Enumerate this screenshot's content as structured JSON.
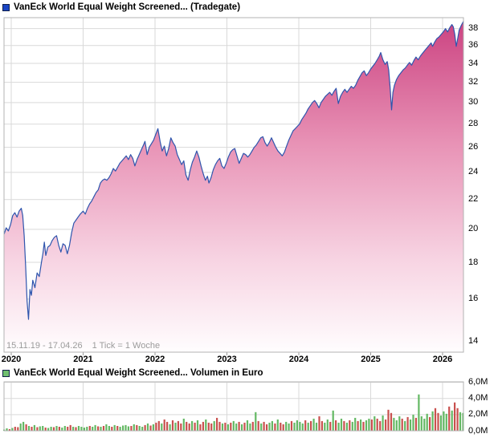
{
  "header": {
    "title": "VanEck World Equal Weight Screened... (Tradegate)"
  },
  "volume_header": {
    "title": "VanEck World Equal Weight Screened... Volumen in Euro"
  },
  "footer": {
    "date_range": "15.11.19 - 17.04.26",
    "tick_note": "1 Tick = 1 Woche"
  },
  "axes": {
    "price_ticks": [
      38,
      36,
      34,
      32,
      30,
      28,
      26,
      24,
      22,
      20,
      18,
      16,
      14
    ],
    "year_ticks": [
      "2020",
      "2021",
      "2022",
      "2023",
      "2024",
      "2025",
      "2026"
    ],
    "volume_tick_labels": [
      "6,0M",
      "4,0M",
      "2,0M",
      "0,0M"
    ],
    "volume_tick_values": [
      6,
      4,
      2,
      0
    ]
  },
  "colors": {
    "price_swatch": "#1a45c4",
    "volume_swatch": "#6fbf6f",
    "line": "#2f55ad",
    "area_top": "#cb4180",
    "area_mid": "#e893b6",
    "area_low": "#f7d3e2",
    "area_bottom": "#fffdfe",
    "grid": "#d9d9d9",
    "plot_border": "#b3b3b3",
    "bar_up": "#63b863",
    "bar_down": "#c9504e"
  },
  "chart_data": [
    {
      "type": "area",
      "title": "VanEck World Equal Weight Screened... (Tradegate)",
      "x_range_label": "15.11.19 - 17.04.26",
      "tick_note": "1 Tick = 1 Woche",
      "xlabel": "",
      "ylabel": "",
      "yscale": "log",
      "ylim": [
        13.5,
        39.4
      ],
      "x_ticks_years": [
        2020,
        2021,
        2022,
        2023,
        2024,
        2025,
        2026
      ],
      "y_ticks": [
        14,
        16,
        18,
        20,
        22,
        24,
        26,
        28,
        30,
        32,
        34,
        36,
        38
      ],
      "grid": true,
      "legend_position": "top-left",
      "points": [
        [
          2019.9,
          19.7
        ],
        [
          2019.93,
          20.1
        ],
        [
          2019.96,
          19.9
        ],
        [
          2019.99,
          20.3
        ],
        [
          2020.02,
          20.9
        ],
        [
          2020.05,
          21.1
        ],
        [
          2020.08,
          20.8
        ],
        [
          2020.11,
          21.2
        ],
        [
          2020.14,
          21.4
        ],
        [
          2020.16,
          20.9
        ],
        [
          2020.18,
          19.6
        ],
        [
          2020.2,
          17.8
        ],
        [
          2020.22,
          15.9
        ],
        [
          2020.24,
          15.0
        ],
        [
          2020.26,
          16.5
        ],
        [
          2020.28,
          16.2
        ],
        [
          2020.3,
          17.0
        ],
        [
          2020.33,
          16.6
        ],
        [
          2020.36,
          17.4
        ],
        [
          2020.39,
          17.2
        ],
        [
          2020.42,
          18.0
        ],
        [
          2020.44,
          18.5
        ],
        [
          2020.46,
          19.2
        ],
        [
          2020.48,
          18.4
        ],
        [
          2020.51,
          18.9
        ],
        [
          2020.54,
          19.0
        ],
        [
          2020.57,
          19.3
        ],
        [
          2020.6,
          19.5
        ],
        [
          2020.63,
          19.6
        ],
        [
          2020.66,
          19.0
        ],
        [
          2020.69,
          18.6
        ],
        [
          2020.72,
          19.1
        ],
        [
          2020.75,
          19.0
        ],
        [
          2020.78,
          18.5
        ],
        [
          2020.81,
          19.0
        ],
        [
          2020.84,
          19.8
        ],
        [
          2020.87,
          20.4
        ],
        [
          2020.9,
          20.6
        ],
        [
          2020.93,
          20.8
        ],
        [
          2020.96,
          21.0
        ],
        [
          2021.0,
          21.2
        ],
        [
          2021.03,
          21.0
        ],
        [
          2021.06,
          21.4
        ],
        [
          2021.09,
          21.7
        ],
        [
          2021.12,
          21.9
        ],
        [
          2021.15,
          22.2
        ],
        [
          2021.18,
          22.5
        ],
        [
          2021.21,
          22.7
        ],
        [
          2021.24,
          23.2
        ],
        [
          2021.27,
          23.4
        ],
        [
          2021.3,
          23.5
        ],
        [
          2021.33,
          23.4
        ],
        [
          2021.36,
          23.6
        ],
        [
          2021.39,
          23.9
        ],
        [
          2021.42,
          24.3
        ],
        [
          2021.45,
          24.1
        ],
        [
          2021.48,
          24.4
        ],
        [
          2021.51,
          24.7
        ],
        [
          2021.54,
          24.9
        ],
        [
          2021.57,
          25.1
        ],
        [
          2021.6,
          25.3
        ],
        [
          2021.63,
          25.0
        ],
        [
          2021.66,
          25.4
        ],
        [
          2021.69,
          25.1
        ],
        [
          2021.72,
          24.5
        ],
        [
          2021.75,
          25.0
        ],
        [
          2021.78,
          25.4
        ],
        [
          2021.81,
          25.8
        ],
        [
          2021.84,
          26.2
        ],
        [
          2021.86,
          26.5
        ],
        [
          2021.89,
          25.4
        ],
        [
          2021.92,
          26.0
        ],
        [
          2021.95,
          26.3
        ],
        [
          2021.98,
          26.6
        ],
        [
          2022.01,
          27.1
        ],
        [
          2022.04,
          27.6
        ],
        [
          2022.07,
          26.5
        ],
        [
          2022.1,
          25.7
        ],
        [
          2022.13,
          26.1
        ],
        [
          2022.16,
          25.3
        ],
        [
          2022.19,
          25.9
        ],
        [
          2022.22,
          26.8
        ],
        [
          2022.25,
          26.4
        ],
        [
          2022.28,
          26.1
        ],
        [
          2022.31,
          25.4
        ],
        [
          2022.34,
          25.0
        ],
        [
          2022.37,
          24.6
        ],
        [
          2022.4,
          24.9
        ],
        [
          2022.43,
          23.8
        ],
        [
          2022.46,
          23.4
        ],
        [
          2022.49,
          24.2
        ],
        [
          2022.52,
          24.8
        ],
        [
          2022.55,
          25.2
        ],
        [
          2022.58,
          25.7
        ],
        [
          2022.61,
          25.2
        ],
        [
          2022.64,
          24.5
        ],
        [
          2022.67,
          23.9
        ],
        [
          2022.7,
          23.4
        ],
        [
          2022.73,
          23.7
        ],
        [
          2022.75,
          23.2
        ],
        [
          2022.78,
          23.6
        ],
        [
          2022.81,
          24.2
        ],
        [
          2022.84,
          24.6
        ],
        [
          2022.87,
          24.9
        ],
        [
          2022.9,
          25.1
        ],
        [
          2022.93,
          24.5
        ],
        [
          2022.96,
          24.3
        ],
        [
          2022.99,
          24.7
        ],
        [
          2023.02,
          25.2
        ],
        [
          2023.05,
          25.6
        ],
        [
          2023.08,
          25.8
        ],
        [
          2023.11,
          25.9
        ],
        [
          2023.14,
          25.3
        ],
        [
          2023.17,
          24.7
        ],
        [
          2023.2,
          25.1
        ],
        [
          2023.23,
          25.5
        ],
        [
          2023.26,
          25.4
        ],
        [
          2023.29,
          25.2
        ],
        [
          2023.32,
          25.4
        ],
        [
          2023.35,
          25.7
        ],
        [
          2023.38,
          26.0
        ],
        [
          2023.41,
          26.2
        ],
        [
          2023.44,
          26.5
        ],
        [
          2023.47,
          26.8
        ],
        [
          2023.5,
          26.9
        ],
        [
          2023.53,
          26.4
        ],
        [
          2023.56,
          26.1
        ],
        [
          2023.59,
          26.4
        ],
        [
          2023.62,
          26.8
        ],
        [
          2023.65,
          26.4
        ],
        [
          2023.68,
          26.0
        ],
        [
          2023.71,
          25.7
        ],
        [
          2023.74,
          25.5
        ],
        [
          2023.77,
          25.3
        ],
        [
          2023.8,
          25.6
        ],
        [
          2023.83,
          26.1
        ],
        [
          2023.86,
          26.6
        ],
        [
          2023.89,
          27.0
        ],
        [
          2023.92,
          27.4
        ],
        [
          2023.95,
          27.6
        ],
        [
          2023.98,
          27.8
        ],
        [
          2024.01,
          28.0
        ],
        [
          2024.04,
          28.4
        ],
        [
          2024.07,
          28.7
        ],
        [
          2024.1,
          29.0
        ],
        [
          2024.13,
          29.4
        ],
        [
          2024.16,
          29.7
        ],
        [
          2024.19,
          30.0
        ],
        [
          2024.22,
          30.2
        ],
        [
          2024.25,
          29.9
        ],
        [
          2024.28,
          29.5
        ],
        [
          2024.31,
          30.0
        ],
        [
          2024.34,
          30.3
        ],
        [
          2024.37,
          30.6
        ],
        [
          2024.4,
          30.8
        ],
        [
          2024.43,
          31.0
        ],
        [
          2024.46,
          30.7
        ],
        [
          2024.49,
          31.1
        ],
        [
          2024.52,
          31.4
        ],
        [
          2024.55,
          29.9
        ],
        [
          2024.58,
          30.6
        ],
        [
          2024.61,
          31.0
        ],
        [
          2024.64,
          31.3
        ],
        [
          2024.67,
          31.0
        ],
        [
          2024.7,
          31.3
        ],
        [
          2024.73,
          31.6
        ],
        [
          2024.76,
          31.4
        ],
        [
          2024.79,
          31.7
        ],
        [
          2024.82,
          32.2
        ],
        [
          2024.85,
          32.6
        ],
        [
          2024.88,
          33.0
        ],
        [
          2024.91,
          33.2
        ],
        [
          2024.94,
          32.7
        ],
        [
          2024.97,
          33.0
        ],
        [
          2025.0,
          33.4
        ],
        [
          2025.03,
          33.7
        ],
        [
          2025.06,
          34.0
        ],
        [
          2025.09,
          34.4
        ],
        [
          2025.12,
          34.8
        ],
        [
          2025.14,
          35.2
        ],
        [
          2025.17,
          34.4
        ],
        [
          2025.2,
          33.9
        ],
        [
          2025.23,
          34.2
        ],
        [
          2025.25,
          33.3
        ],
        [
          2025.27,
          31.5
        ],
        [
          2025.29,
          29.3
        ],
        [
          2025.31,
          31.0
        ],
        [
          2025.33,
          31.7
        ],
        [
          2025.36,
          32.3
        ],
        [
          2025.39,
          32.7
        ],
        [
          2025.42,
          33.0
        ],
        [
          2025.45,
          33.3
        ],
        [
          2025.48,
          33.5
        ],
        [
          2025.51,
          33.8
        ],
        [
          2025.54,
          34.1
        ],
        [
          2025.57,
          33.8
        ],
        [
          2025.6,
          34.3
        ],
        [
          2025.63,
          34.7
        ],
        [
          2025.66,
          34.4
        ],
        [
          2025.69,
          34.8
        ],
        [
          2025.72,
          35.1
        ],
        [
          2025.75,
          35.4
        ],
        [
          2025.78,
          35.7
        ],
        [
          2025.81,
          36.0
        ],
        [
          2025.84,
          36.3
        ],
        [
          2025.86,
          35.9
        ],
        [
          2025.89,
          36.4
        ],
        [
          2025.92,
          36.8
        ],
        [
          2025.95,
          37.0
        ],
        [
          2025.98,
          37.3
        ],
        [
          2026.01,
          37.6
        ],
        [
          2026.04,
          38.0
        ],
        [
          2026.07,
          37.6
        ],
        [
          2026.1,
          38.1
        ],
        [
          2026.13,
          38.5
        ],
        [
          2026.15,
          38.2
        ],
        [
          2026.17,
          37.3
        ],
        [
          2026.19,
          35.9
        ],
        [
          2026.21,
          36.8
        ],
        [
          2026.23,
          37.8
        ],
        [
          2026.26,
          38.4
        ],
        [
          2026.29,
          38.9
        ]
      ]
    },
    {
      "type": "bar",
      "title": "VanEck World Equal Weight Screened... Volumen in Euro",
      "ylabel": "Volumen in Euro",
      "unit": "M EUR",
      "ylim": [
        0,
        6
      ],
      "y_ticks": [
        0,
        2,
        4,
        6
      ],
      "x_start": 2019.9,
      "x_step": 0.03846,
      "values": [
        0.15,
        0.3,
        0.2,
        0.35,
        0.5,
        0.45,
        0.9,
        1.1,
        0.8,
        0.6,
        0.5,
        0.7,
        0.45,
        0.55,
        0.6,
        0.4,
        0.35,
        0.5,
        0.45,
        0.6,
        0.5,
        0.4,
        0.6,
        0.5,
        0.7,
        0.5,
        0.45,
        0.6,
        0.5,
        0.4,
        0.5,
        0.6,
        0.5,
        0.7,
        0.55,
        0.5,
        0.6,
        0.8,
        0.6,
        0.5,
        0.7,
        0.6,
        0.5,
        0.65,
        0.7,
        0.55,
        0.6,
        0.8,
        0.7,
        0.6,
        0.5,
        0.7,
        0.9,
        0.65,
        0.8,
        1.0,
        1.2,
        0.9,
        1.4,
        1.1,
        0.8,
        1.3,
        1.0,
        1.2,
        0.9,
        1.5,
        1.1,
        0.9,
        1.2,
        1.0,
        1.3,
        0.8,
        1.1,
        1.4,
        1.0,
        0.9,
        1.2,
        1.6,
        1.1,
        0.9,
        1.0,
        0.8,
        1.0,
        1.2,
        0.9,
        1.1,
        0.8,
        1.0,
        1.3,
        0.9,
        1.1,
        2.3,
        1.2,
        0.9,
        1.1,
        0.8,
        1.0,
        1.2,
        0.9,
        1.4,
        1.0,
        0.8,
        1.1,
        0.9,
        1.2,
        1.0,
        1.3,
        1.1,
        0.9,
        1.3,
        1.0,
        1.2,
        1.5,
        1.0,
        1.8,
        1.2,
        1.0,
        1.4,
        1.1,
        2.5,
        1.3,
        1.0,
        1.5,
        1.2,
        1.0,
        1.3,
        1.1,
        1.6,
        1.2,
        1.4,
        1.1,
        1.3,
        1.5,
        1.4,
        1.8,
        1.5,
        1.2,
        1.9,
        1.4,
        2.6,
        2.2,
        1.6,
        1.3,
        1.8,
        1.5,
        1.2,
        1.7,
        1.4,
        2.0,
        1.6,
        4.5,
        1.8,
        1.5,
        2.1,
        1.7,
        2.4,
        2.8,
        2.2,
        1.9,
        2.4,
        2.1,
        3.0,
        2.5,
        3.5,
        2.8,
        2.3,
        2.2
      ],
      "colors": "ggrgrrggrgrgrggrggrgrggrrgrggggrggrgrggrgrggggrgrggrgrgrrgrrgrgrrgrrgrgrrgrrgrrgrgrggrgrggrgrgrrggrgrrggrggggrgrggrrggrgrggrgrggrgrggrgrrgrrrgggrgrggrggggrgrrgggrgrrgg"
    }
  ]
}
